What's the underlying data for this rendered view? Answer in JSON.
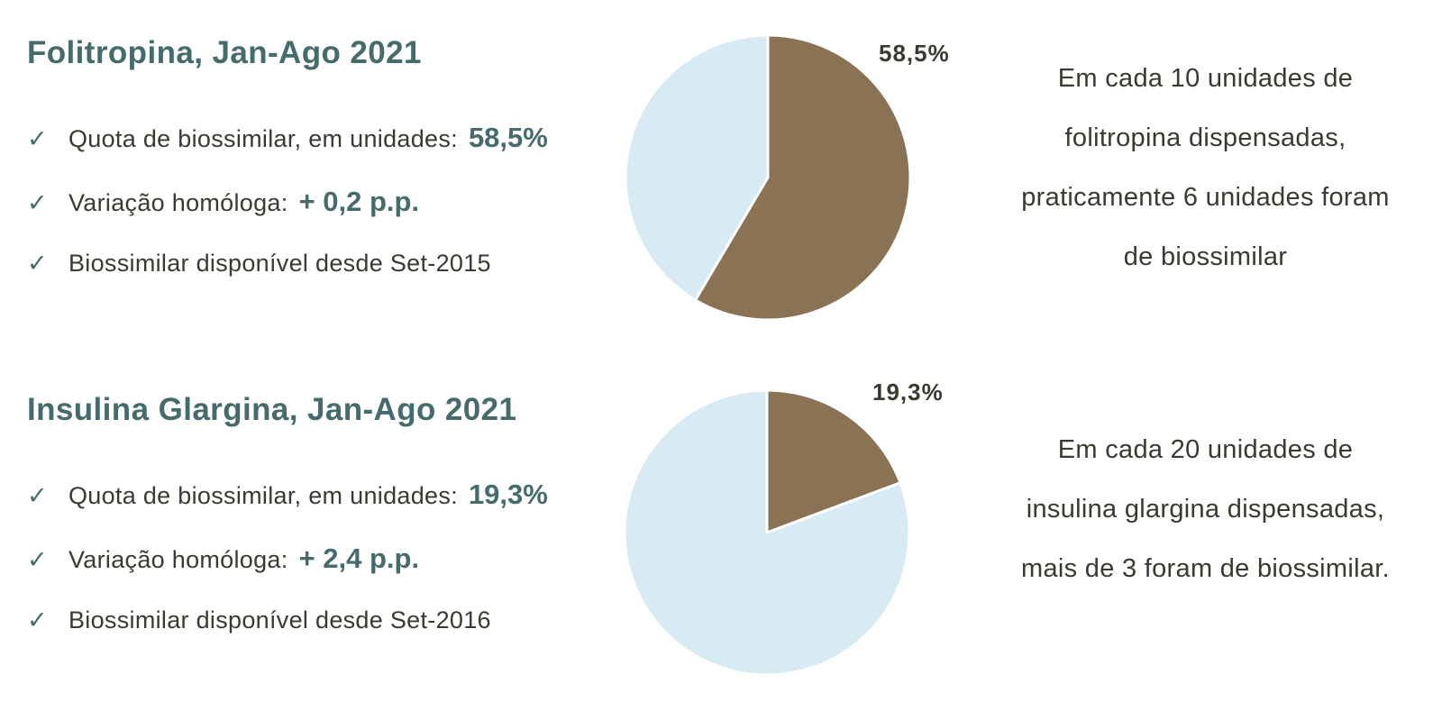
{
  "colors": {
    "accent_teal": "#466B6D",
    "text_dark": "#3B3A31",
    "pie_brown": "#8A7355",
    "pie_light_blue": "#D8EAF3",
    "slice_separator": "#FFFFFF"
  },
  "sections": [
    {
      "title": "Folitropina, Jan-Ago 2021",
      "bullets": [
        {
          "check": "✓",
          "label": "Quota de biossimilar, em unidades:",
          "value": "58,5%"
        },
        {
          "check": "✓",
          "label": "Variação homóloga:",
          "value": "+ 0,2 p.p."
        },
        {
          "check": "✓",
          "label": "Biossimilar disponível desde Set-2015",
          "value": ""
        }
      ],
      "pie_label": "58,5%",
      "note_lines": [
        "Em cada 10 unidades de",
        "folitropina dispensadas,",
        "praticamente 6 unidades foram",
        "de biossimilar"
      ]
    },
    {
      "title": "Insulina Glargina, Jan-Ago 2021",
      "bullets": [
        {
          "check": "✓",
          "label": "Quota de biossimilar, em unidades:",
          "value": "19,3%"
        },
        {
          "check": "✓",
          "label": "Variação homóloga:",
          "value": "+ 2,4 p.p."
        },
        {
          "check": "✓",
          "label": "Biossimilar disponível desde Set-2016",
          "value": ""
        }
      ],
      "pie_label": "19,3%",
      "note_lines": [
        "Em cada 20 unidades de",
        "insulina glargina dispensadas,",
        "mais de 3 foram de biossimilar."
      ]
    }
  ],
  "chart_data": [
    {
      "type": "pie",
      "title": "Folitropina, Jan-Ago 2021",
      "values": [
        58.5,
        41.5
      ],
      "colors": [
        "#8A7355",
        "#D8EAF3"
      ],
      "data_label": "58,5%",
      "start_angle_deg": 0,
      "direction": "clockwise",
      "legend": "none"
    },
    {
      "type": "pie",
      "title": "Insulina Glargina, Jan-Ago 2021",
      "values": [
        19.3,
        80.7
      ],
      "colors": [
        "#8A7355",
        "#D8EAF3"
      ],
      "data_label": "19,3%",
      "start_angle_deg": 0,
      "direction": "clockwise",
      "legend": "none"
    }
  ]
}
